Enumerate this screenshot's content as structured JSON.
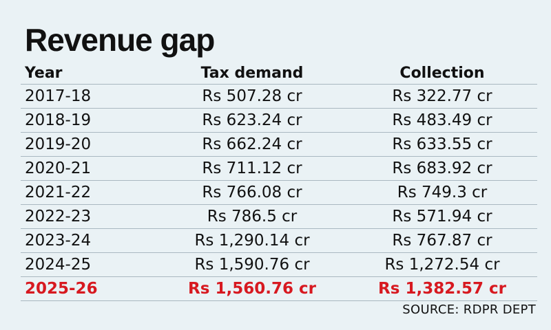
{
  "chart_data": {
    "type": "table",
    "title": "Revenue gap",
    "columns": [
      "Year",
      "Tax demand",
      "Collection"
    ],
    "rows": [
      {
        "year": "2017-18",
        "tax_demand": "Rs 507.28 cr",
        "collection": "Rs 322.77 cr"
      },
      {
        "year": "2018-19",
        "tax_demand": "Rs 623.24 cr",
        "collection": "Rs 483.49 cr"
      },
      {
        "year": "2019-20",
        "tax_demand": "Rs 662.24 cr",
        "collection": "Rs 633.55 cr"
      },
      {
        "year": "2020-21",
        "tax_demand": "Rs 711.12 cr",
        "collection": "Rs 683.92 cr"
      },
      {
        "year": "2021-22",
        "tax_demand": "Rs 766.08 cr",
        "collection": "Rs 749.3 cr"
      },
      {
        "year": "2022-23",
        "tax_demand": "Rs 786.5 cr",
        "collection": "Rs 571.94 cr"
      },
      {
        "year": "2023-24",
        "tax_demand": "Rs 1,290.14 cr",
        "collection": "Rs 767.87 cr"
      },
      {
        "year": "2024-25",
        "tax_demand": "Rs 1,590.76 cr",
        "collection": "Rs 1,272.54 cr"
      },
      {
        "year": "2025-26",
        "tax_demand": "Rs 1,560.76 cr",
        "collection": "Rs 1,382.57 cr"
      }
    ],
    "highlight_row": "2025-26",
    "highlight_color": "#d71920",
    "source": "SOURCE: RDPR DEPT"
  }
}
